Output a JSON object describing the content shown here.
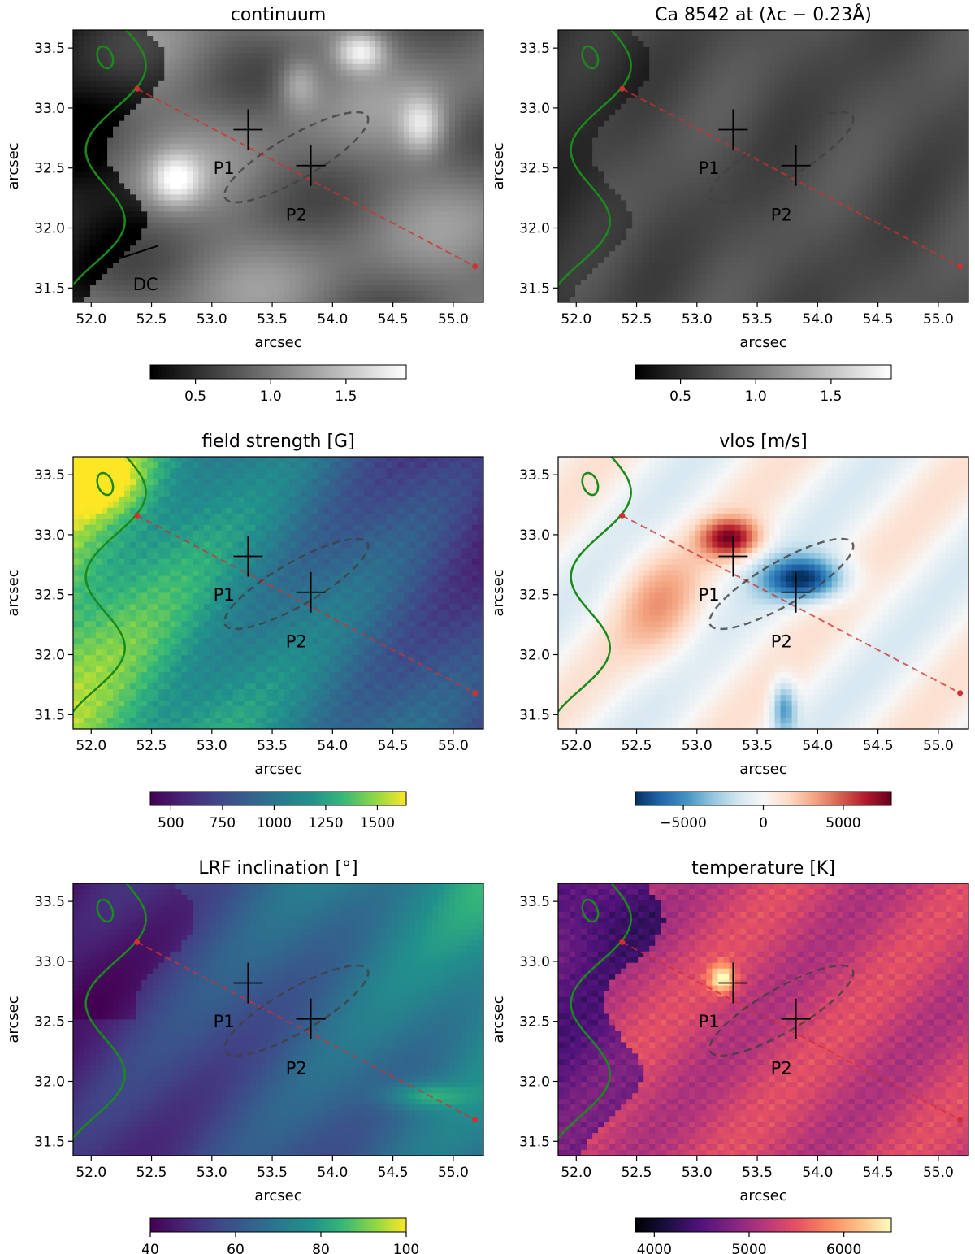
{
  "figure_description": "Six-panel figure of solar observations",
  "shared": {
    "xlabel": "arcsec",
    "ylabel": "arcsec",
    "xticks": [
      "52.0",
      "52.5",
      "53.0",
      "53.5",
      "54.0",
      "54.5",
      "55.0"
    ],
    "yticks": [
      "31.5",
      "32.0",
      "32.5",
      "33.0",
      "33.5"
    ],
    "xlim": [
      51.85,
      55.25
    ],
    "ylim": [
      31.38,
      33.65
    ],
    "markers": [
      {
        "label": "P1",
        "x": 53.3,
        "y": 32.82,
        "label_x": 53.1,
        "label_y": 32.45
      },
      {
        "label": "P2",
        "x": 53.82,
        "y": 32.52,
        "label_x": 53.7,
        "label_y": 32.06
      }
    ],
    "slit": {
      "x0": 52.38,
      "y0": 33.16,
      "x1": 55.18,
      "y1": 31.68
    },
    "ellipse": {
      "cx": 53.7,
      "cy": 32.59,
      "rx": 0.68,
      "ry": 0.18,
      "angle_deg": -30
    }
  },
  "chart_data": [
    {
      "type": "heatmap",
      "id": "continuum",
      "title": "continuum",
      "colormap": "gray",
      "cbar_range": [
        0.2,
        1.9
      ],
      "cbar_ticks": [
        "0.5",
        "1.0",
        "1.5"
      ],
      "cbar_tick_values": [
        0.5,
        1.0,
        1.5
      ],
      "annotation": "DC"
    },
    {
      "type": "heatmap",
      "id": "ca8542",
      "title": "Ca 8542 at (λc − 0.23Å)",
      "colormap": "gray",
      "cbar_range": [
        0.2,
        1.9
      ],
      "cbar_ticks": [
        "0.5",
        "1.0",
        "1.5"
      ],
      "cbar_tick_values": [
        0.5,
        1.0,
        1.5
      ]
    },
    {
      "type": "heatmap",
      "id": "field",
      "title": "field strength [G]",
      "colormap": "viridis",
      "cbar_range": [
        400,
        1640
      ],
      "cbar_ticks": [
        "500",
        "750",
        "1000",
        "1250",
        "1500"
      ],
      "cbar_tick_values": [
        500,
        750,
        1000,
        1250,
        1500
      ]
    },
    {
      "type": "heatmap",
      "id": "vlos",
      "title": "vlos [m/s]",
      "colormap": "RdBu_r",
      "cbar_range": [
        -8000,
        8000
      ],
      "cbar_ticks": [
        "−5000",
        "0",
        "5000"
      ],
      "cbar_tick_values": [
        -5000,
        0,
        5000
      ]
    },
    {
      "type": "heatmap",
      "id": "incl",
      "title": "LRF inclination [°]",
      "colormap": "viridis",
      "cbar_range": [
        40,
        100
      ],
      "cbar_ticks": [
        "40",
        "60",
        "80",
        "100"
      ],
      "cbar_tick_values": [
        40,
        60,
        80,
        100
      ]
    },
    {
      "type": "heatmap",
      "id": "temp",
      "title": "temperature [K]",
      "colormap": "magma",
      "cbar_range": [
        3800,
        6500
      ],
      "cbar_ticks": [
        "4000",
        "5000",
        "6000"
      ],
      "cbar_tick_values": [
        4000,
        5000,
        6000
      ]
    }
  ],
  "colors": {
    "contour": "#1a8a1a",
    "slit": "#d03030",
    "ellipse": "#404040",
    "cross": "#000000"
  }
}
